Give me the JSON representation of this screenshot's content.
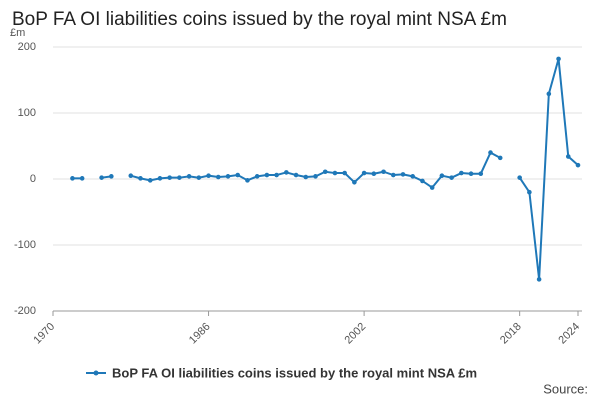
{
  "chart_data": {
    "type": "line",
    "title": "BoP FA OI liabilities coins issued by the royal mint NSA £m",
    "y_unit": "£m",
    "source_label": "Source:",
    "x": [
      1970,
      1971,
      1972,
      1973,
      1974,
      1975,
      1976,
      1977,
      1978,
      1979,
      1980,
      1981,
      1982,
      1983,
      1984,
      1985,
      1986,
      1987,
      1988,
      1989,
      1990,
      1991,
      1992,
      1993,
      1994,
      1995,
      1996,
      1997,
      1998,
      1999,
      2000,
      2001,
      2002,
      2003,
      2004,
      2005,
      2006,
      2007,
      2008,
      2009,
      2010,
      2011,
      2012,
      2013,
      2014,
      2015,
      2016,
      2017,
      2018,
      2019,
      2020,
      2021,
      2022,
      2023,
      2024
    ],
    "series": [
      {
        "name": "BoP FA OI liabilities coins issued by the royal mint NSA £m",
        "color": "#1f78b8",
        "values": [
          null,
          null,
          1,
          1,
          null,
          2,
          4,
          null,
          5,
          1,
          -2,
          1,
          2,
          2,
          4,
          2,
          5,
          3,
          4,
          6,
          -2,
          4,
          6,
          6,
          10,
          6,
          3,
          4,
          11,
          9,
          9,
          -5,
          9,
          8,
          11,
          6,
          7,
          4,
          -3,
          -13,
          5,
          2,
          9,
          8,
          8,
          40,
          32,
          null,
          2,
          -20,
          -152,
          129,
          182,
          34,
          21
        ]
      }
    ],
    "xlim": [
      1970,
      2024
    ],
    "xticks": [
      1970,
      1986,
      2002,
      2018,
      2024
    ],
    "ylim": [
      -200,
      200
    ],
    "yticks": [
      -200,
      -100,
      0,
      100,
      200
    ],
    "grid": true
  }
}
